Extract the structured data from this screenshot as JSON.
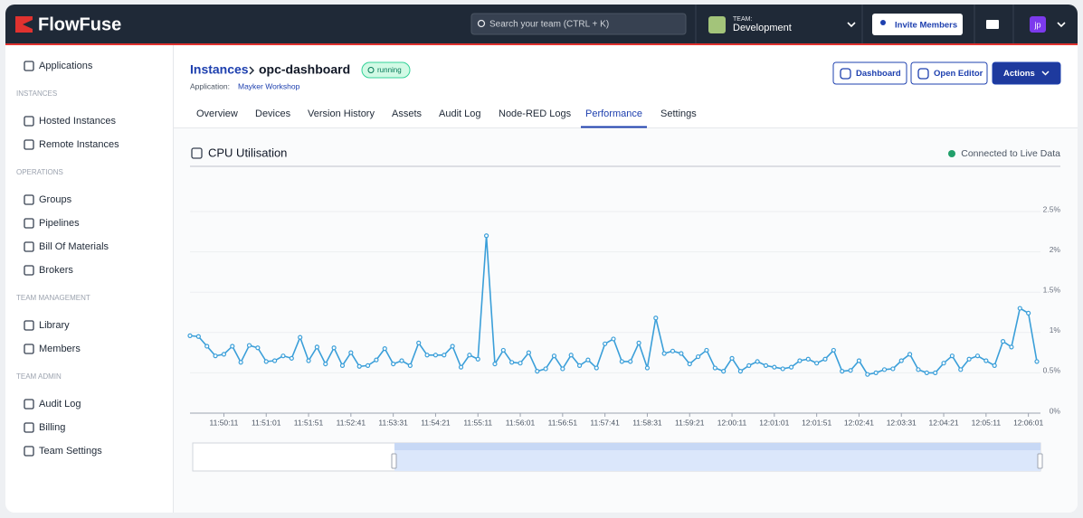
{
  "header": {
    "logo": "FlowFuse",
    "search_placeholder": "Search your team (CTRL + K)",
    "team_label": "TEAM:",
    "team_name": "Development",
    "invite": "Invite Members",
    "avatar": "jp"
  },
  "sidebar": {
    "top": "Applications",
    "sections": [
      {
        "title": "INSTANCES",
        "items": [
          "Hosted Instances",
          "Remote Instances"
        ]
      },
      {
        "title": "OPERATIONS",
        "items": [
          "Groups",
          "Pipelines",
          "Bill Of Materials",
          "Brokers"
        ]
      },
      {
        "title": "TEAM MANAGEMENT",
        "items": [
          "Library",
          "Members"
        ]
      },
      {
        "title": "TEAM ADMIN",
        "items": [
          "Audit Log",
          "Billing",
          "Team Settings"
        ]
      }
    ]
  },
  "page": {
    "breadcrumb_parent": "Instances",
    "instance": "opc-dashboard",
    "status": "running",
    "application_label": "Application:",
    "application": "Mayker Workshop",
    "buttons": [
      "Dashboard",
      "Open Editor",
      "Actions"
    ],
    "tabs": [
      "Overview",
      "Devices",
      "Version History",
      "Assets",
      "Audit Log",
      "Node-RED Logs",
      "Performance",
      "Settings"
    ],
    "active_tab": 6,
    "panel_title": "CPU Utilisation",
    "live_status": "Connected to Live Data"
  },
  "chart_data": {
    "type": "line",
    "color": "#3b9fd9",
    "grid": true,
    "categories": [
      null,
      null,
      null,
      null,
      "11:50:11",
      null,
      null,
      null,
      null,
      "11:51:01",
      null,
      null,
      null,
      null,
      "11:51:51",
      null,
      null,
      null,
      null,
      "11:52:41",
      null,
      null,
      null,
      null,
      "11:53:31",
      null,
      null,
      null,
      null,
      "11:54:21",
      null,
      null,
      null,
      null,
      "11:55:11",
      null,
      null,
      null,
      null,
      "11:56:01",
      null,
      null,
      null,
      null,
      "11:56:51",
      null,
      null,
      null,
      null,
      "11:57:41",
      null,
      null,
      null,
      null,
      "11:58:31",
      null,
      null,
      null,
      null,
      "11:59:21",
      null,
      null,
      null,
      null,
      "12:00:11",
      null,
      null,
      null,
      null,
      "12:01:01",
      null,
      null,
      null,
      null,
      "12:01:51",
      null,
      null,
      null,
      null,
      "12:02:41",
      null,
      null,
      null,
      null,
      "12:03:31",
      null,
      null,
      null,
      null,
      "12:04:21",
      null,
      null,
      null,
      null,
      "12:05:11",
      null,
      null,
      null,
      null,
      "12:06:01",
      null
    ],
    "values": [
      0.96,
      0.95,
      0.83,
      0.71,
      0.73,
      0.83,
      0.63,
      0.84,
      0.81,
      0.64,
      0.65,
      0.71,
      0.68,
      0.94,
      0.65,
      0.82,
      0.61,
      0.81,
      0.59,
      0.75,
      0.58,
      0.59,
      0.66,
      0.8,
      0.61,
      0.65,
      0.59,
      0.87,
      0.72,
      0.72,
      0.72,
      0.83,
      0.57,
      0.72,
      0.67,
      2.2,
      0.61,
      0.78,
      0.63,
      0.62,
      0.75,
      0.52,
      0.55,
      0.71,
      0.55,
      0.72,
      0.59,
      0.66,
      0.56,
      0.86,
      0.92,
      0.64,
      0.64,
      0.87,
      0.56,
      1.18,
      0.74,
      0.77,
      0.74,
      0.61,
      0.7,
      0.78,
      0.56,
      0.52,
      0.68,
      0.52,
      0.59,
      0.64,
      0.59,
      0.57,
      0.55,
      0.57,
      0.65,
      0.67,
      0.62,
      0.67,
      0.78,
      0.52,
      0.53,
      0.65,
      0.48,
      0.5,
      0.54,
      0.55,
      0.65,
      0.73,
      0.54,
      0.5,
      0.5,
      0.62,
      0.71,
      0.54,
      0.67,
      0.71,
      0.65,
      0.59,
      0.89,
      0.82,
      1.3,
      1.24,
      0.64
    ],
    "ylim": [
      0,
      2.5
    ],
    "yticks": [
      {
        "value": 0,
        "label": "0%"
      },
      {
        "value": 0.5,
        "label": "0.5%"
      },
      {
        "value": 1,
        "label": "1%"
      },
      {
        "value": 1.5,
        "label": "1.5%"
      },
      {
        "value": 2,
        "label": "2%"
      },
      {
        "value": 2.5,
        "label": "2.5%"
      }
    ]
  }
}
